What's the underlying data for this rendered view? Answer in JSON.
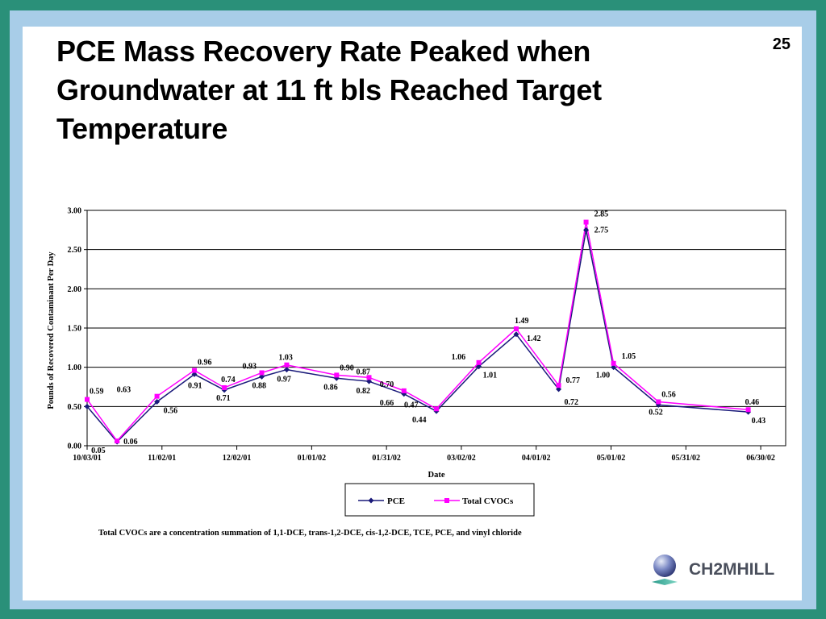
{
  "slide": {
    "title": "PCE Mass Recovery Rate Peaked when\nGroundwater at 11 ft bls Reached Target\nTemperature",
    "number": "25",
    "footnote": "Total CVOCs are a concentration summation of 1,1-DCE, trans-1,2-DCE, cis-1,2-DCE, TCE, PCE, and vinyl chloride",
    "logo_text": "CH2MHILL"
  },
  "chart_data": {
    "type": "line",
    "title": "",
    "xlabel": "Date",
    "ylabel": "Pounds of Recovered Contaminant Per Day",
    "ylim": [
      0,
      3
    ],
    "yticks": [
      "0.00",
      "0.50",
      "1.00",
      "1.50",
      "2.00",
      "2.50",
      "3.00"
    ],
    "xlim": [
      "2001-10-03",
      "2002-07-10"
    ],
    "xticks": [
      {
        "date": "2001-10-03",
        "label": "10/03/01"
      },
      {
        "date": "2001-11-02",
        "label": "11/02/01"
      },
      {
        "date": "2001-12-02",
        "label": "12/02/01"
      },
      {
        "date": "2002-01-01",
        "label": "01/01/02"
      },
      {
        "date": "2002-01-31",
        "label": "01/31/02"
      },
      {
        "date": "2002-03-02",
        "label": "03/02/02"
      },
      {
        "date": "2002-04-01",
        "label": "04/01/02"
      },
      {
        "date": "2002-05-01",
        "label": "05/01/02"
      },
      {
        "date": "2002-05-31",
        "label": "05/31/02"
      },
      {
        "date": "2002-06-30",
        "label": "06/30/02"
      }
    ],
    "grid": "horizontal",
    "legend": "bottom",
    "x": [
      "2001-10-03",
      "2001-10-15",
      "2001-10-31",
      "2001-11-15",
      "2001-11-27",
      "2001-12-12",
      "2001-12-22",
      "2002-01-11",
      "2002-01-24",
      "2002-02-07",
      "2002-02-20",
      "2002-03-09",
      "2002-03-24",
      "2002-04-10",
      "2002-04-21",
      "2002-05-02",
      "2002-05-20",
      "2002-06-25"
    ],
    "series": [
      {
        "name": "PCE",
        "color": "#1a1a7a",
        "marker": "diamond",
        "values": [
          0.5,
          0.05,
          0.56,
          0.91,
          0.71,
          0.88,
          0.97,
          0.86,
          0.82,
          0.66,
          0.44,
          1.01,
          1.42,
          0.72,
          2.75,
          1.0,
          0.52,
          0.43
        ],
        "labels": [
          "",
          "0.05",
          "0.56",
          "0.91",
          "0.71",
          "0.88",
          "0.97",
          "0.86",
          "0.82",
          "0.66",
          "0.44",
          "1.01",
          "1.42",
          "0.72",
          "2.75",
          "1.00",
          "0.52",
          "0.43"
        ]
      },
      {
        "name": "Total CVOCs",
        "color": "#ff00ff",
        "marker": "square",
        "values": [
          0.59,
          0.06,
          0.63,
          0.96,
          0.74,
          0.93,
          1.03,
          0.9,
          0.87,
          0.7,
          0.47,
          1.06,
          1.49,
          0.77,
          2.85,
          1.05,
          0.56,
          0.46
        ],
        "labels": [
          "0.59",
          "0.06",
          "0.63",
          "0.96",
          "0.74",
          "0.93",
          "1.03",
          "0.90",
          "0.87",
          "0.70",
          "0.47",
          "1.06",
          "1.49",
          "0.77",
          "2.85",
          "1.05",
          "0.56",
          "0.46"
        ]
      }
    ]
  }
}
